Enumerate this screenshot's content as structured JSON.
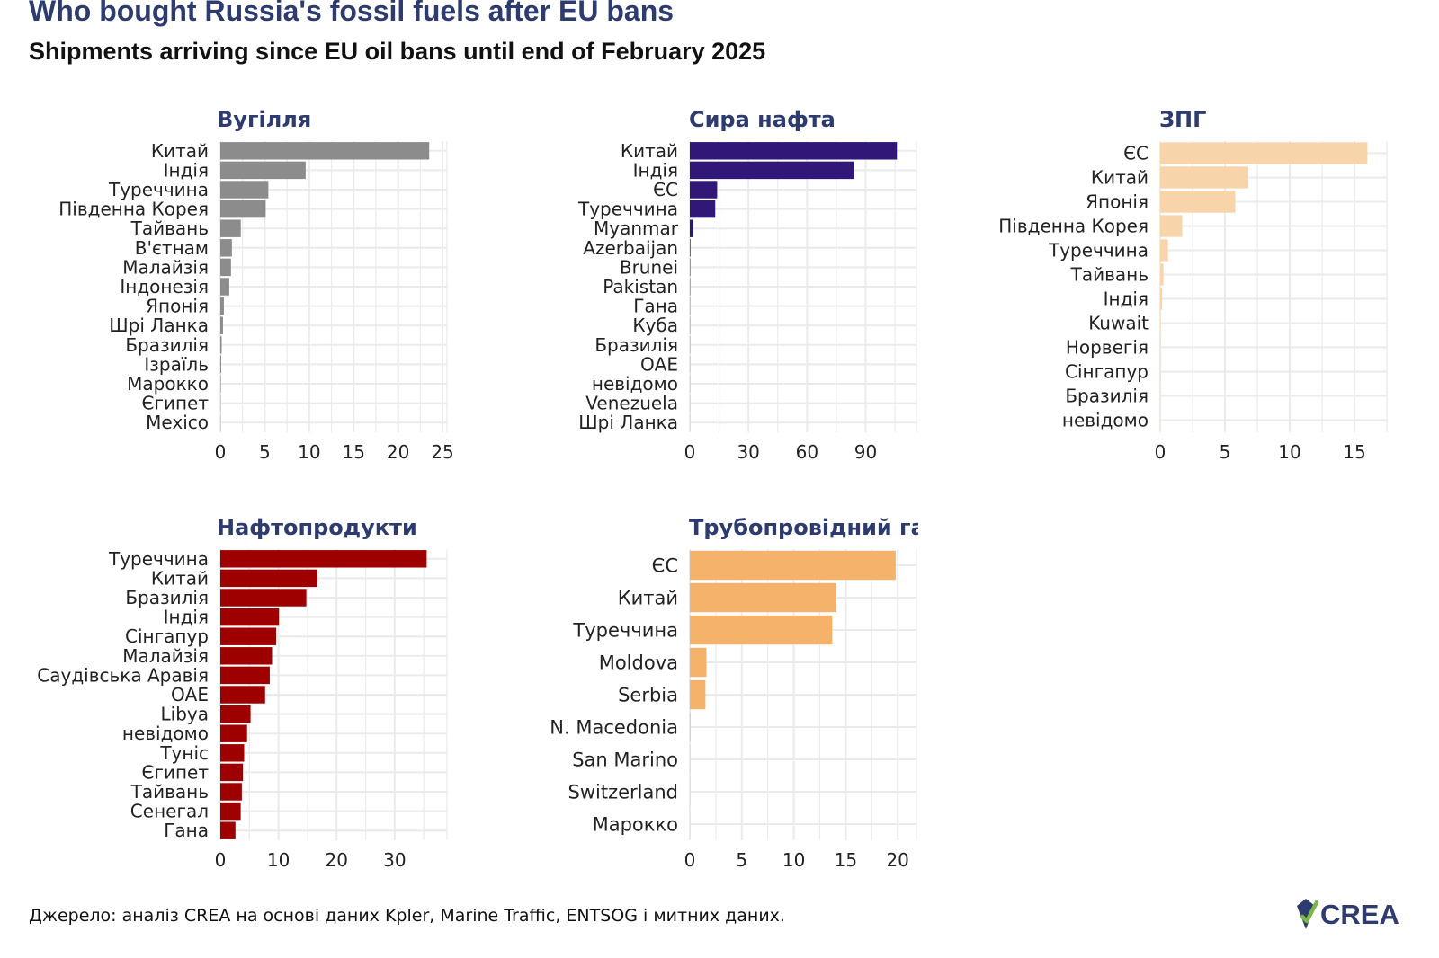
{
  "title": "Who bought Russia's fossil fuels after EU bans",
  "subtitle": "Shipments arriving since EU oil bans until end of February 2025",
  "source": "Джерело: аналіз CREA на основі даних Kpler, Marine Traffic, ENTSOG і митних даних.",
  "logo": {
    "text": "CREA",
    "colors": {
      "text": "#2e3b6e",
      "mark_dark": "#2e3b6e",
      "mark_light": "#7ab648"
    }
  },
  "colors": {
    "title": "#2e3b6e",
    "grid": "#ebebeb",
    "axis_text": "#222222"
  },
  "chart_data": [
    {
      "type": "bar",
      "orientation": "horizontal",
      "title": "Вугілля",
      "color": "#8c8c8c",
      "categories": [
        "Китай",
        "Індія",
        "Туреччина",
        "Південна Корея",
        "Тайвань",
        "В'єтнам",
        "Малайзія",
        "Індонезія",
        "Японія",
        "Шрі Ланка",
        "Бразилія",
        "Ізраїль",
        "Марокко",
        "Єгипет",
        "Mexico"
      ],
      "values": [
        23.5,
        9.6,
        5.4,
        5.1,
        2.3,
        1.3,
        1.2,
        1.0,
        0.4,
        0.3,
        0.15,
        0.1,
        0.05,
        0.03,
        0.02
      ],
      "xticks": [
        0,
        5,
        10,
        15,
        20,
        25
      ],
      "xlim": [
        0,
        25.5
      ]
    },
    {
      "type": "bar",
      "orientation": "horizontal",
      "title": "Сира нафта",
      "color": "#311878",
      "categories": [
        "Китай",
        "Індія",
        "ЄС",
        "Туреччина",
        "Myanmar",
        "Azerbaijan",
        "Brunei",
        "Pakistan",
        "Гана",
        "Куба",
        "Бразилія",
        "ОАЕ",
        "невідомо",
        "Venezuela",
        "Шрі Ланка"
      ],
      "values": [
        106,
        84,
        14,
        13,
        1.5,
        0.3,
        0.2,
        0.15,
        0.1,
        0.1,
        0.08,
        0.06,
        0.05,
        0.04,
        0.03
      ],
      "xticks": [
        0,
        30,
        60,
        90
      ],
      "xlim": [
        0,
        116
      ]
    },
    {
      "type": "bar",
      "orientation": "horizontal",
      "title": "ЗПГ",
      "color": "#f8d4ab",
      "categories": [
        "ЄС",
        "Китай",
        "Японія",
        "Південна Корея",
        "Туреччина",
        "Тайвань",
        "Індія",
        "Kuwait",
        "Норвегія",
        "Сінгапур",
        "Бразилія",
        "невідомо"
      ],
      "values": [
        16,
        6.8,
        5.8,
        1.7,
        0.6,
        0.25,
        0.15,
        0.03,
        0.02,
        0.02,
        0.01,
        0.01
      ],
      "xticks": [
        0,
        5,
        10,
        15
      ],
      "xlim": [
        0,
        17.5
      ]
    },
    {
      "type": "bar",
      "orientation": "horizontal",
      "title": "Нафтопродукти",
      "color": "#9e0000",
      "categories": [
        "Туреччина",
        "Китай",
        "Бразилія",
        "Індія",
        "Сінгапур",
        "Малайзія",
        "Саудівська Аравія",
        "ОАЕ",
        "Libya",
        "невідомо",
        "Туніс",
        "Єгипет",
        "Тайвань",
        "Сенегал",
        "Гана"
      ],
      "values": [
        35.5,
        16.7,
        14.8,
        10.1,
        9.6,
        8.9,
        8.5,
        7.7,
        5.2,
        4.6,
        4.1,
        3.9,
        3.7,
        3.5,
        2.6
      ],
      "xticks": [
        0,
        10,
        20,
        30
      ],
      "xlim": [
        0,
        39
      ]
    },
    {
      "type": "bar",
      "orientation": "horizontal",
      "title": "Трубопровідний газ",
      "color": "#f5b26b",
      "categories": [
        "ЄС",
        "Китай",
        "Туреччина",
        "Moldova",
        "Serbia",
        "N. Macedonia",
        "San Marino",
        "Switzerland",
        "Марокко"
      ],
      "values": [
        19.8,
        14.1,
        13.7,
        1.6,
        1.5,
        0.05,
        0.02,
        0.02,
        0.01
      ],
      "xticks": [
        0,
        5,
        10,
        15,
        20
      ],
      "xlim": [
        0,
        21.8
      ]
    }
  ]
}
